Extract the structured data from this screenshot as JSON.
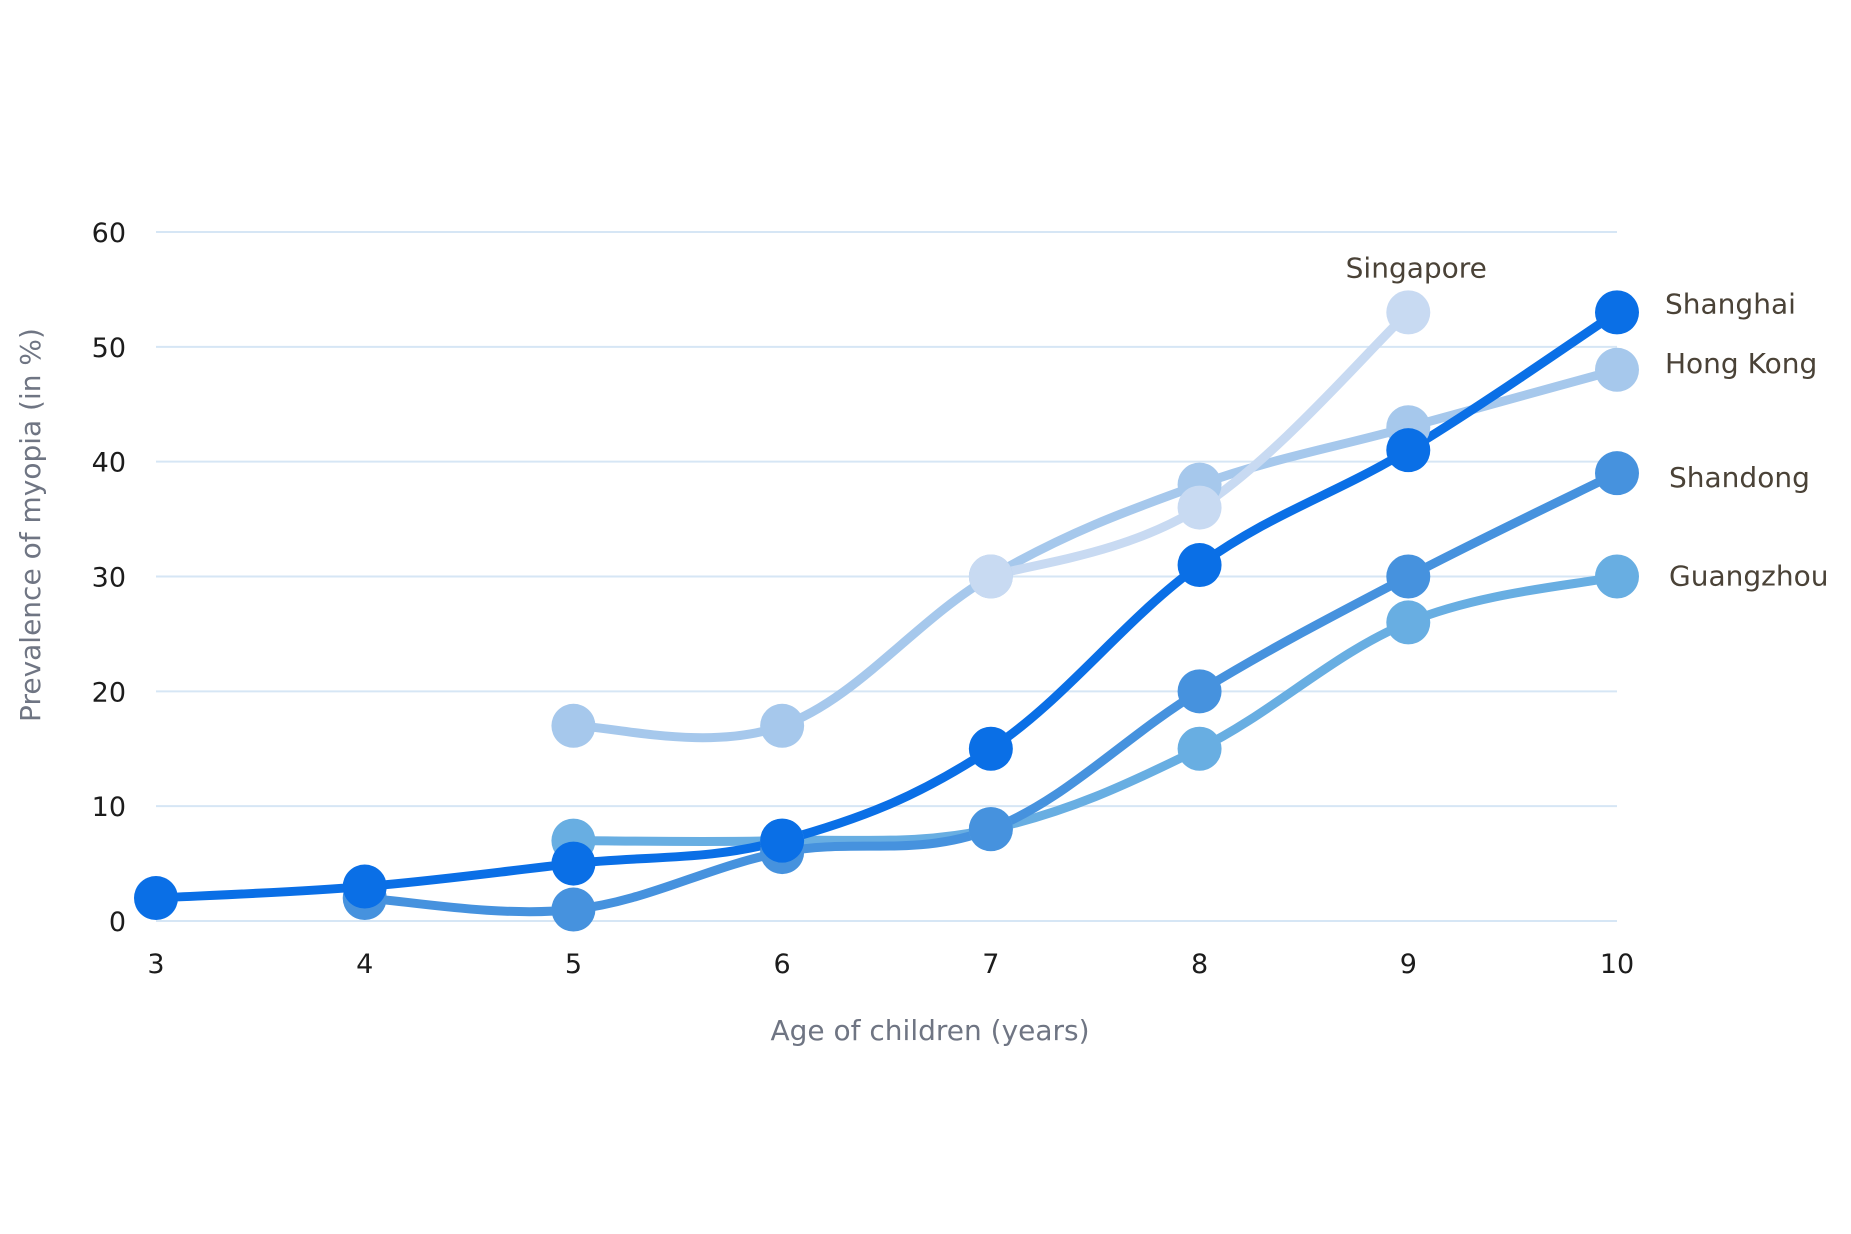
{
  "chart_data": {
    "type": "line",
    "title": "",
    "xlabel": "Age of children (years)",
    "ylabel": "Prevalence of myopia (in %)",
    "x": [
      3,
      4,
      5,
      6,
      7,
      8,
      9,
      10
    ],
    "xlim": [
      3,
      10
    ],
    "ylim": [
      0,
      60
    ],
    "yticks": [
      0,
      10,
      20,
      30,
      40,
      50,
      60
    ],
    "grid": true,
    "legend": "direct labels at line ends",
    "series": [
      {
        "name": "Hong Kong",
        "color": "#a6c8ec",
        "x": [
          5,
          6,
          7,
          8,
          9,
          10
        ],
        "values": [
          17,
          17,
          30,
          38,
          43,
          48
        ]
      },
      {
        "name": "Singapore",
        "color": "#c8daf2",
        "x": [
          7,
          8,
          9
        ],
        "values": [
          30,
          36,
          53
        ]
      },
      {
        "name": "Guangzhou",
        "color": "#68aee2",
        "x": [
          5,
          6,
          7,
          8,
          9,
          10
        ],
        "values": [
          7,
          7,
          8,
          15,
          26,
          30
        ]
      },
      {
        "name": "Shandong",
        "color": "#4692de",
        "x": [
          4,
          5,
          6,
          7,
          8,
          9,
          10
        ],
        "values": [
          2,
          1,
          6,
          8,
          20,
          30,
          39
        ]
      },
      {
        "name": "Shanghai",
        "color": "#0a6fe6",
        "x": [
          3,
          4,
          5,
          6,
          7,
          8,
          9,
          10
        ],
        "values": [
          2,
          3,
          5,
          7,
          15,
          31,
          41,
          53
        ]
      }
    ]
  }
}
